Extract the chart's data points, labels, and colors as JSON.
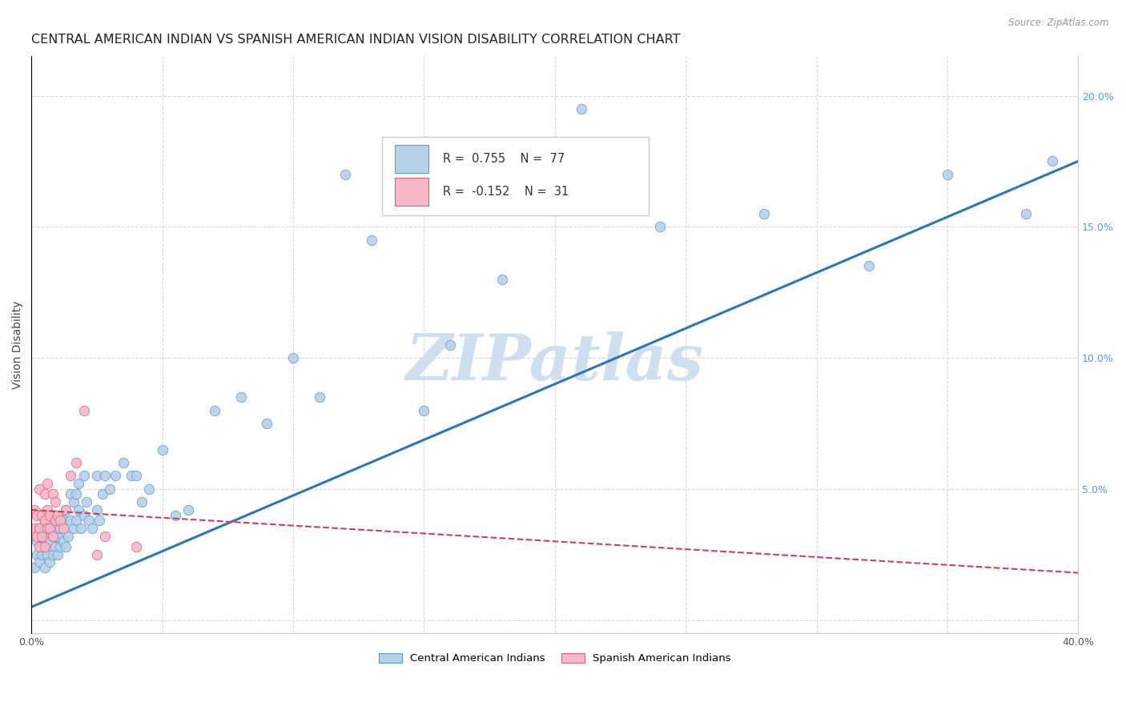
{
  "title": "CENTRAL AMERICAN INDIAN VS SPANISH AMERICAN INDIAN VISION DISABILITY CORRELATION CHART",
  "source": "Source: ZipAtlas.com",
  "ylabel": "Vision Disability",
  "watermark": "ZIPatlas",
  "legend_blue_r": "0.755",
  "legend_blue_n": "77",
  "legend_pink_r": "-0.152",
  "legend_pink_n": "31",
  "legend_label_blue": "Central American Indians",
  "legend_label_pink": "Spanish American Indians",
  "xlim": [
    0.0,
    0.4
  ],
  "ylim": [
    -0.005,
    0.215
  ],
  "xticks": [
    0.0,
    0.05,
    0.1,
    0.15,
    0.2,
    0.25,
    0.3,
    0.35,
    0.4
  ],
  "yticks": [
    0.0,
    0.05,
    0.1,
    0.15,
    0.2
  ],
  "blue_color": "#b8d0e8",
  "blue_edge_color": "#5b9bd5",
  "blue_line_color": "#2e75b6",
  "pink_color": "#f4b8c8",
  "pink_edge_color": "#e06080",
  "pink_line_color": "#c9405a",
  "right_axis_color": "#5b9bd5",
  "background_color": "#ffffff",
  "grid_color": "#d9d9d9",
  "title_fontsize": 11.5,
  "axis_label_fontsize": 10,
  "tick_fontsize": 9,
  "watermark_color": "#d0dff0",
  "watermark_fontsize": 58,
  "blue_scatter_x": [
    0.001,
    0.002,
    0.002,
    0.003,
    0.003,
    0.003,
    0.004,
    0.004,
    0.005,
    0.005,
    0.005,
    0.006,
    0.006,
    0.007,
    0.007,
    0.007,
    0.008,
    0.008,
    0.008,
    0.009,
    0.009,
    0.01,
    0.01,
    0.01,
    0.011,
    0.011,
    0.012,
    0.012,
    0.013,
    0.013,
    0.014,
    0.015,
    0.015,
    0.016,
    0.016,
    0.017,
    0.017,
    0.018,
    0.018,
    0.019,
    0.02,
    0.02,
    0.021,
    0.022,
    0.023,
    0.025,
    0.025,
    0.026,
    0.027,
    0.028,
    0.03,
    0.032,
    0.035,
    0.038,
    0.04,
    0.042,
    0.045,
    0.05,
    0.055,
    0.06,
    0.07,
    0.08,
    0.09,
    0.1,
    0.11,
    0.12,
    0.13,
    0.15,
    0.16,
    0.18,
    0.21,
    0.24,
    0.28,
    0.32,
    0.35,
    0.38,
    0.39
  ],
  "blue_scatter_y": [
    0.02,
    0.025,
    0.03,
    0.022,
    0.028,
    0.035,
    0.025,
    0.032,
    0.02,
    0.028,
    0.038,
    0.025,
    0.032,
    0.022,
    0.03,
    0.038,
    0.025,
    0.032,
    0.04,
    0.028,
    0.035,
    0.025,
    0.032,
    0.04,
    0.028,
    0.035,
    0.03,
    0.038,
    0.028,
    0.042,
    0.032,
    0.038,
    0.048,
    0.035,
    0.045,
    0.038,
    0.048,
    0.042,
    0.052,
    0.035,
    0.04,
    0.055,
    0.045,
    0.038,
    0.035,
    0.042,
    0.055,
    0.038,
    0.048,
    0.055,
    0.05,
    0.055,
    0.06,
    0.055,
    0.055,
    0.045,
    0.05,
    0.065,
    0.04,
    0.042,
    0.08,
    0.085,
    0.075,
    0.1,
    0.085,
    0.17,
    0.145,
    0.08,
    0.105,
    0.13,
    0.195,
    0.15,
    0.155,
    0.135,
    0.17,
    0.155,
    0.175
  ],
  "pink_scatter_x": [
    0.001,
    0.001,
    0.002,
    0.002,
    0.003,
    0.003,
    0.003,
    0.004,
    0.004,
    0.005,
    0.005,
    0.005,
    0.006,
    0.006,
    0.006,
    0.007,
    0.007,
    0.008,
    0.008,
    0.009,
    0.009,
    0.01,
    0.011,
    0.012,
    0.013,
    0.015,
    0.017,
    0.02,
    0.025,
    0.028,
    0.04
  ],
  "pink_scatter_y": [
    0.035,
    0.042,
    0.032,
    0.04,
    0.028,
    0.035,
    0.05,
    0.032,
    0.04,
    0.028,
    0.038,
    0.048,
    0.035,
    0.042,
    0.052,
    0.035,
    0.04,
    0.032,
    0.048,
    0.038,
    0.045,
    0.04,
    0.038,
    0.035,
    0.042,
    0.055,
    0.06,
    0.08,
    0.025,
    0.032,
    0.028
  ],
  "blue_line_x": [
    0.0,
    0.4
  ],
  "blue_line_y": [
    0.005,
    0.175
  ],
  "pink_line_x": [
    0.0,
    0.4
  ],
  "pink_line_y": [
    0.042,
    0.018
  ]
}
